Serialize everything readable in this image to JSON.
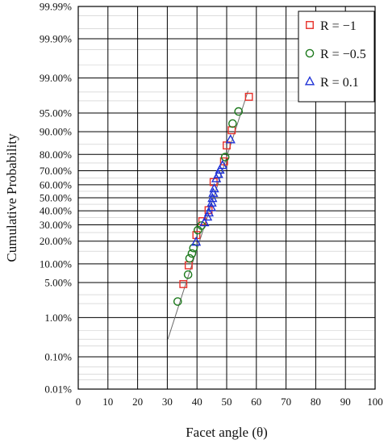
{
  "chart_data": {
    "type": "scatter",
    "title": "",
    "xlabel": "Facet angle (θ)",
    "ylabel": "Cumulative Probability",
    "x_scale": "linear",
    "y_scale": "normal-probability",
    "xlim": [
      0,
      100
    ],
    "ylim": [
      0.01,
      99.99
    ],
    "x_ticks": [
      0,
      10,
      20,
      30,
      40,
      50,
      60,
      70,
      80,
      90,
      100
    ],
    "y_ticks": [
      0.01,
      0.1,
      1,
      5,
      10,
      20,
      30,
      40,
      50,
      60,
      70,
      80,
      90,
      95,
      99,
      99.9,
      99.99
    ],
    "y_tick_labels": [
      "0.01%",
      "0.10%",
      "1.00%",
      "5.00%",
      "10.00%",
      "20.00%",
      "30.00%",
      "40.00%",
      "50.00%",
      "60.00%",
      "70.00%",
      "80.00%",
      "90.00%",
      "95.00%",
      "99.00%",
      "99.90%",
      "99.99%"
    ],
    "grid": true,
    "legend_position": "top-right",
    "series": [
      {
        "name": "R = −1",
        "marker": "square",
        "color": "#e8312a",
        "points": [
          [
            35.4,
            4.7
          ],
          [
            37.2,
            9.5
          ],
          [
            39.8,
            23.5
          ],
          [
            41.8,
            32.5
          ],
          [
            43.9,
            40.5
          ],
          [
            45.6,
            62.0
          ],
          [
            49.1,
            76.0
          ],
          [
            50.0,
            84.5
          ],
          [
            51.7,
            90.5
          ],
          [
            57.5,
            97.5
          ]
        ]
      },
      {
        "name": "R = −0.5",
        "marker": "circle",
        "color": "#1e7a1e",
        "points": [
          [
            33.5,
            2.2
          ],
          [
            37.0,
            6.8
          ],
          [
            37.5,
            12.0
          ],
          [
            38.3,
            14.0
          ],
          [
            38.8,
            16.5
          ],
          [
            40.3,
            26.5
          ],
          [
            41.5,
            29.5
          ],
          [
            49.5,
            78.5
          ],
          [
            52.0,
            92.5
          ],
          [
            54.0,
            95.3
          ]
        ]
      },
      {
        "name": "R = 0.1",
        "marker": "triangle",
        "color": "#1f32d6",
        "points": [
          [
            39.7,
            19.5
          ],
          [
            42.5,
            31.5
          ],
          [
            43.5,
            35.5
          ],
          [
            44.0,
            38.5
          ],
          [
            44.8,
            42.5
          ],
          [
            45.0,
            46.0
          ],
          [
            45.2,
            49.5
          ],
          [
            45.5,
            53.5
          ],
          [
            45.8,
            57.0
          ],
          [
            46.5,
            64.5
          ],
          [
            47.2,
            67.5
          ],
          [
            47.7,
            70.5
          ],
          [
            48.6,
            73.5
          ],
          [
            51.3,
            87.0
          ]
        ]
      }
    ],
    "fit_line": {
      "points": [
        [
          30.2,
          0.3
        ],
        [
          57.2,
          98.1
        ]
      ],
      "color": "#6b6b6b"
    }
  }
}
